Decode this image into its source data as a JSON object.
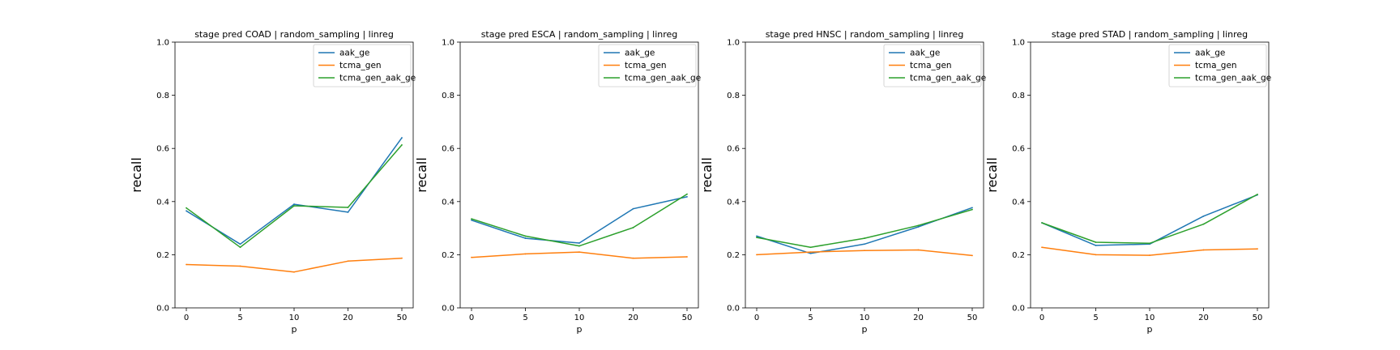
{
  "colors": {
    "aak_ge": "#1f77b4",
    "tcma_gen": "#ff7f0e",
    "tcma_gen_aak_ge": "#2ca02c"
  },
  "chart_data": [
    {
      "type": "line",
      "title": "stage pred COAD | random_sampling | linreg",
      "xlabel": "p",
      "ylabel": "recall",
      "categories": [
        "0",
        "5",
        "10",
        "20",
        "50"
      ],
      "yticks": [
        "0.0",
        "0.2",
        "0.4",
        "0.6",
        "0.8",
        "1.0"
      ],
      "ylim": [
        0,
        1
      ],
      "legend_position": "top-right",
      "grid": false,
      "series": [
        {
          "name": "aak_ge",
          "color": "#1f77b4",
          "values": [
            0.365,
            0.24,
            0.39,
            0.36,
            0.64
          ]
        },
        {
          "name": "tcma_gen",
          "color": "#ff7f0e",
          "values": [
            0.163,
            0.157,
            0.135,
            0.176,
            0.187
          ]
        },
        {
          "name": "tcma_gen_aak_ge",
          "color": "#2ca02c",
          "values": [
            0.376,
            0.228,
            0.384,
            0.378,
            0.613
          ]
        }
      ]
    },
    {
      "type": "line",
      "title": "stage pred ESCA | random_sampling | linreg",
      "xlabel": "p",
      "ylabel": "recall",
      "categories": [
        "0",
        "5",
        "10",
        "20",
        "50"
      ],
      "yticks": [
        "0.0",
        "0.2",
        "0.4",
        "0.6",
        "0.8",
        "1.0"
      ],
      "ylim": [
        0,
        1
      ],
      "legend_position": "top-right",
      "grid": false,
      "series": [
        {
          "name": "aak_ge",
          "color": "#1f77b4",
          "values": [
            0.33,
            0.262,
            0.244,
            0.373,
            0.418
          ]
        },
        {
          "name": "tcma_gen",
          "color": "#ff7f0e",
          "values": [
            0.19,
            0.203,
            0.21,
            0.187,
            0.192
          ]
        },
        {
          "name": "tcma_gen_aak_ge",
          "color": "#2ca02c",
          "values": [
            0.335,
            0.27,
            0.233,
            0.302,
            0.428
          ]
        }
      ]
    },
    {
      "type": "line",
      "title": "stage pred HNSC | random_sampling | linreg",
      "xlabel": "p",
      "ylabel": "recall",
      "categories": [
        "0",
        "5",
        "10",
        "20",
        "50"
      ],
      "yticks": [
        "0.0",
        "0.2",
        "0.4",
        "0.6",
        "0.8",
        "1.0"
      ],
      "ylim": [
        0,
        1
      ],
      "legend_position": "top-right",
      "grid": false,
      "series": [
        {
          "name": "aak_ge",
          "color": "#1f77b4",
          "values": [
            0.27,
            0.205,
            0.24,
            0.305,
            0.377
          ]
        },
        {
          "name": "tcma_gen",
          "color": "#ff7f0e",
          "values": [
            0.2,
            0.21,
            0.216,
            0.218,
            0.197
          ]
        },
        {
          "name": "tcma_gen_aak_ge",
          "color": "#2ca02c",
          "values": [
            0.265,
            0.228,
            0.262,
            0.31,
            0.37
          ]
        }
      ]
    },
    {
      "type": "line",
      "title": "stage pred STAD | random_sampling | linreg",
      "xlabel": "p",
      "ylabel": "recall",
      "categories": [
        "0",
        "5",
        "10",
        "20",
        "50"
      ],
      "yticks": [
        "0.0",
        "0.2",
        "0.4",
        "0.6",
        "0.8",
        "1.0"
      ],
      "ylim": [
        0,
        1
      ],
      "legend_position": "top-right",
      "grid": false,
      "series": [
        {
          "name": "aak_ge",
          "color": "#1f77b4",
          "values": [
            0.32,
            0.235,
            0.24,
            0.345,
            0.425
          ]
        },
        {
          "name": "tcma_gen",
          "color": "#ff7f0e",
          "values": [
            0.228,
            0.2,
            0.198,
            0.218,
            0.222
          ]
        },
        {
          "name": "tcma_gen_aak_ge",
          "color": "#2ca02c",
          "values": [
            0.32,
            0.247,
            0.243,
            0.315,
            0.427
          ]
        }
      ]
    }
  ]
}
